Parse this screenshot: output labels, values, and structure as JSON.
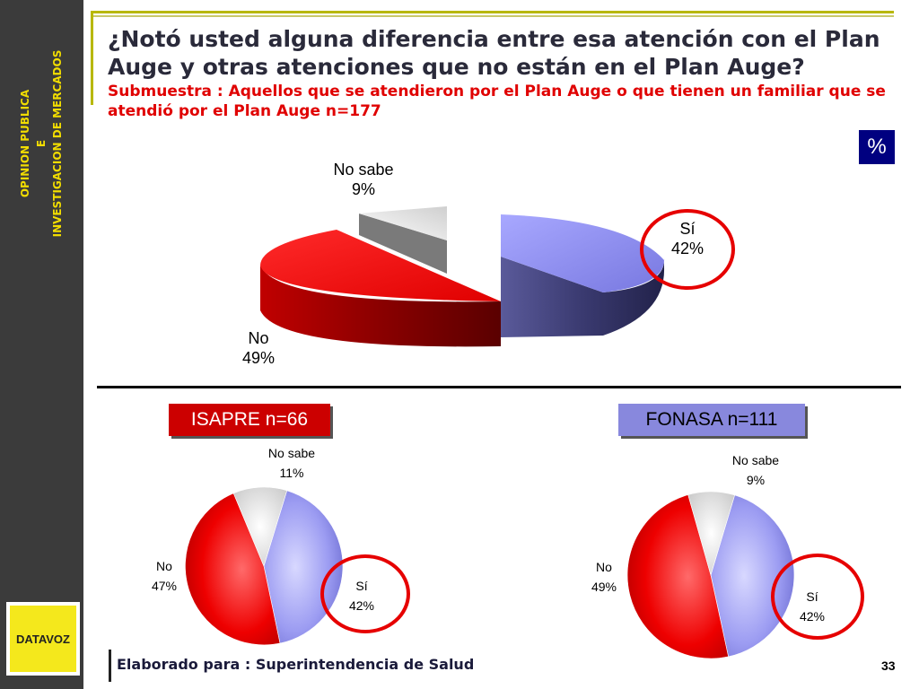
{
  "sidebar": {
    "line1": "OPINION PUBLICA",
    "line2": "E",
    "line3": "INVESTIGACION DE MERCADOS",
    "logo_text": "DATAVOZ"
  },
  "title": "¿Notó usted alguna diferencia entre esa atención con el Plan Auge y otras atenciones que no están en el Plan Auge?",
  "subtitle": "Submuestra : Aquellos que se atendieron por el Plan Auge o que tienen un familiar que se atendió por el Plan Auge n=177",
  "unit_badge": "%",
  "footer": "Elaborado para : Superintendencia de Salud",
  "page_number": "33",
  "colors": {
    "si": "#8c8cf0",
    "no": "#e00000",
    "no_sabe": "#ffffff",
    "accent_ring": "#e60000",
    "isapre_header": "#cc0000",
    "fonasa_header": "#8888dd",
    "badge": "#000080"
  },
  "chart_data": [
    {
      "type": "pie",
      "style": "3d-exploded",
      "title": "",
      "slices": [
        {
          "label": "Sí",
          "value": 42,
          "value_label": "42%"
        },
        {
          "label": "No",
          "value": 49,
          "value_label": "49%"
        },
        {
          "label": "No sabe",
          "value": 9,
          "value_label": "9%"
        }
      ],
      "highlighted": "Sí"
    },
    {
      "type": "pie",
      "title": "ISAPRE n=66",
      "slices": [
        {
          "label": "Sí",
          "value": 42,
          "value_label": "42%"
        },
        {
          "label": "No",
          "value": 47,
          "value_label": "47%"
        },
        {
          "label": "No sabe",
          "value": 11,
          "value_label": "11%"
        }
      ],
      "highlighted": "Sí"
    },
    {
      "type": "pie",
      "title": "FONASA n=111",
      "slices": [
        {
          "label": "Sí",
          "value": 42,
          "value_label": "42%"
        },
        {
          "label": "No",
          "value": 49,
          "value_label": "49%"
        },
        {
          "label": "No sabe",
          "value": 9,
          "value_label": "9%"
        }
      ],
      "highlighted": "Sí"
    }
  ]
}
